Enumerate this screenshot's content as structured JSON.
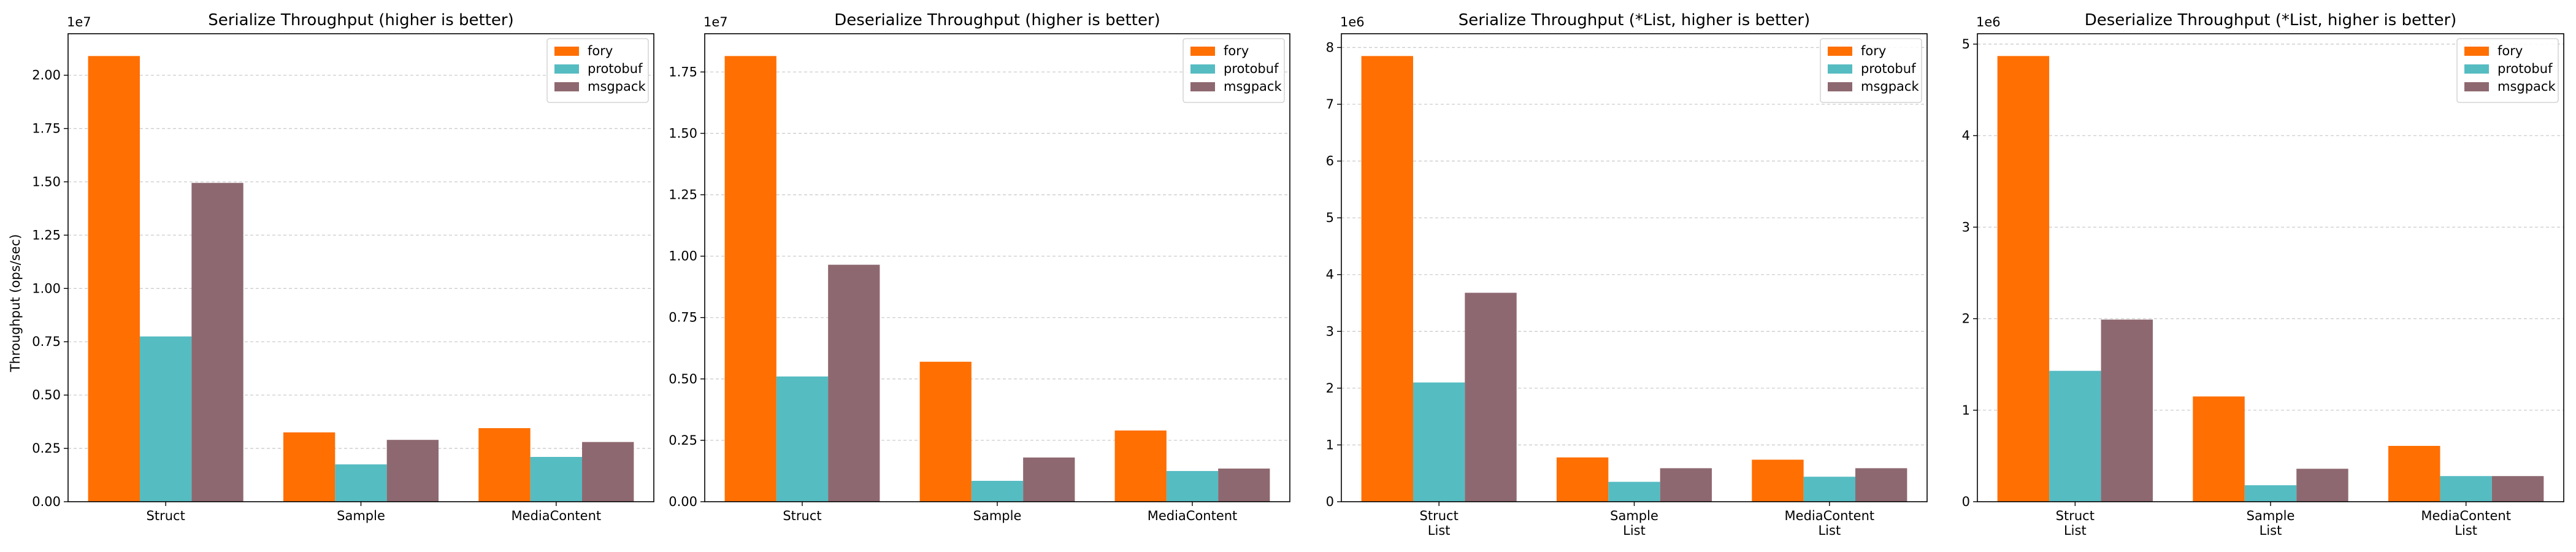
{
  "colors": {
    "fory": "#ff6f01",
    "protobuf": "#55bcc2",
    "msgpack": "#8e6870",
    "grid": "#cccccc"
  },
  "ylabel": "Throughput (ops/sec)",
  "chart_data": [
    {
      "type": "bar",
      "title": "Serialize Throughput (higher is better)",
      "categories": [
        [
          "Struct"
        ],
        [
          "Sample"
        ],
        [
          "MediaContent"
        ]
      ],
      "series": [
        {
          "name": "fory",
          "values": [
            20900000,
            3250000,
            3450000
          ]
        },
        {
          "name": "protobuf",
          "values": [
            7750000,
            1750000,
            2100000
          ]
        },
        {
          "name": "msgpack",
          "values": [
            14950000,
            2900000,
            2800000
          ]
        }
      ],
      "ylim": [
        0,
        21945000
      ],
      "yticks": [
        0,
        2500000,
        5000000,
        7500000,
        10000000,
        12500000,
        15000000,
        17500000,
        20000000
      ],
      "ytick_labels": [
        "0.00",
        "0.25",
        "0.50",
        "0.75",
        "1.00",
        "1.25",
        "1.50",
        "1.75",
        "2.00"
      ],
      "scale_label": "1e7",
      "ylabel": "Throughput (ops/sec)",
      "legend": "top-right",
      "grid": "y-dashed"
    },
    {
      "type": "bar",
      "title": "Deserialize Throughput (higher is better)",
      "categories": [
        [
          "Struct"
        ],
        [
          "Sample"
        ],
        [
          "MediaContent"
        ]
      ],
      "series": [
        {
          "name": "fory",
          "values": [
            18150000,
            5700000,
            2900000
          ]
        },
        {
          "name": "protobuf",
          "values": [
            5100000,
            850000,
            1250000
          ]
        },
        {
          "name": "msgpack",
          "values": [
            9650000,
            1800000,
            1350000
          ]
        }
      ],
      "ylim": [
        0,
        19057500
      ],
      "yticks": [
        0,
        2500000,
        5000000,
        7500000,
        10000000,
        12500000,
        15000000,
        17500000
      ],
      "ytick_labels": [
        "0.00",
        "0.25",
        "0.50",
        "0.75",
        "1.00",
        "1.25",
        "1.50",
        "1.75"
      ],
      "scale_label": "1e7",
      "ylabel": "",
      "legend": "top-right",
      "grid": "y-dashed"
    },
    {
      "type": "bar",
      "title": "Serialize Throughput (*List, higher is better)",
      "categories": [
        [
          "Struct",
          "List"
        ],
        [
          "Sample",
          "List"
        ],
        [
          "MediaContent",
          "List"
        ]
      ],
      "series": [
        {
          "name": "fory",
          "values": [
            7850000,
            780000,
            740000
          ]
        },
        {
          "name": "protobuf",
          "values": [
            2100000,
            350000,
            440000
          ]
        },
        {
          "name": "msgpack",
          "values": [
            3680000,
            590000,
            590000
          ]
        }
      ],
      "ylim": [
        0,
        8242500
      ],
      "yticks": [
        0,
        1000000,
        2000000,
        3000000,
        4000000,
        5000000,
        6000000,
        7000000,
        8000000
      ],
      "ytick_labels": [
        "0",
        "1",
        "2",
        "3",
        "4",
        "5",
        "6",
        "7",
        "8"
      ],
      "scale_label": "1e6",
      "ylabel": "",
      "legend": "top-right",
      "grid": "y-dashed"
    },
    {
      "type": "bar",
      "title": "Deserialize Throughput (*List, higher is better)",
      "categories": [
        [
          "Struct",
          "List"
        ],
        [
          "Sample",
          "List"
        ],
        [
          "MediaContent",
          "List"
        ]
      ],
      "series": [
        {
          "name": "fory",
          "values": [
            4870000,
            1150000,
            610000
          ]
        },
        {
          "name": "protobuf",
          "values": [
            1430000,
            180000,
            280000
          ]
        },
        {
          "name": "msgpack",
          "values": [
            1990000,
            360000,
            280000
          ]
        }
      ],
      "ylim": [
        0,
        5113500
      ],
      "yticks": [
        0,
        1000000,
        2000000,
        3000000,
        4000000,
        5000000
      ],
      "ytick_labels": [
        "0",
        "1",
        "2",
        "3",
        "4",
        "5"
      ],
      "scale_label": "1e6",
      "ylabel": "",
      "legend": "top-right",
      "grid": "y-dashed"
    }
  ]
}
